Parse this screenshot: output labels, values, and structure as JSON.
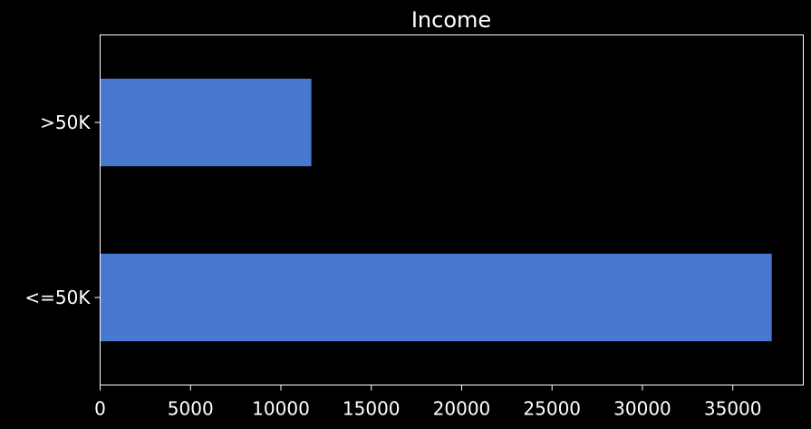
{
  "chart_data": {
    "type": "bar",
    "orientation": "horizontal",
    "title": "Income",
    "xlabel": "",
    "ylabel": "",
    "categories": [
      "<=50K",
      ">50K"
    ],
    "values": [
      37155,
      11687
    ],
    "xlim": [
      0,
      38900
    ],
    "xticks": [
      0,
      5000,
      10000,
      15000,
      20000,
      25000,
      30000,
      35000
    ],
    "grid": false,
    "bar_color": "#4878CF",
    "background_color": "#000000",
    "text_color": "#FFFFFF"
  }
}
